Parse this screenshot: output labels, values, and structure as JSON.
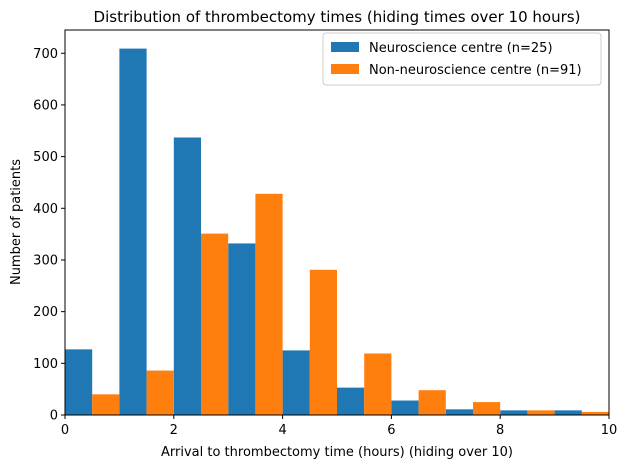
{
  "chart_data": {
    "type": "bar",
    "title": "Distribution of thrombectomy times (hiding times over 10 hours)",
    "xlabel": "Arrival to thrombectomy time (hours) (hiding over 10)",
    "ylabel": "Number of patients",
    "xlim": [
      0,
      10
    ],
    "ylim": [
      0,
      745
    ],
    "xticks": [
      "0",
      "2",
      "4",
      "6",
      "8",
      "10"
    ],
    "yticks": [
      "0",
      "100",
      "200",
      "300",
      "400",
      "500",
      "600",
      "700"
    ],
    "bin_edges": [
      0,
      1,
      2,
      3,
      4,
      5,
      6,
      7,
      8,
      9,
      10
    ],
    "grid": false,
    "legend_position": "top-right",
    "series": [
      {
        "name": "Neuroscience centre (n=25)",
        "color": "#1f77b4",
        "values": [
          127,
          709,
          537,
          332,
          125,
          53,
          28,
          11,
          9,
          9
        ]
      },
      {
        "name": "Non-neuroscience centre (n=91)",
        "color": "#ff7f0e",
        "values": [
          40,
          86,
          351,
          428,
          281,
          119,
          48,
          25,
          9,
          6
        ]
      }
    ]
  }
}
